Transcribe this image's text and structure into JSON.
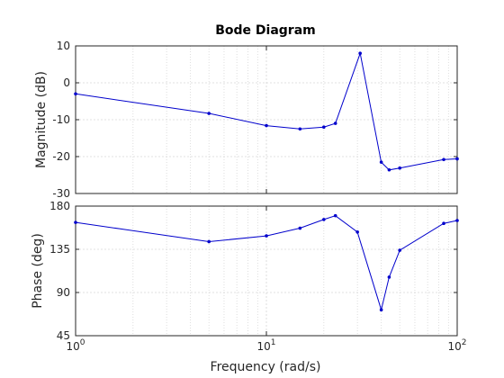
{
  "chart_data": {
    "type": "line",
    "title": "Bode Diagram",
    "xlabel": "Frequency  (rad/s)",
    "x_scale": "log",
    "xlim": [
      1,
      100
    ],
    "x_ticks": [
      {
        "value": 1,
        "base": "10",
        "exp": "0"
      },
      {
        "value": 10,
        "base": "10",
        "exp": "1"
      },
      {
        "value": 100,
        "base": "10",
        "exp": "2"
      }
    ],
    "grid": true,
    "line_color": "#0000cc",
    "panels": [
      {
        "id": "magnitude",
        "ylabel": "Magnitude (dB)",
        "ylim": [
          -30,
          10
        ],
        "y_ticks": [
          "10",
          "0",
          "-10",
          "-20",
          "-30"
        ],
        "y_tick_values": [
          10,
          0,
          -10,
          -20,
          -30
        ],
        "x": [
          1,
          5,
          10,
          15,
          20,
          23,
          31,
          40,
          44,
          50,
          85,
          100
        ],
        "y": [
          -3,
          -8.3,
          -11.6,
          -12.5,
          -12,
          -11,
          8,
          -21.5,
          -23.6,
          -23.1,
          -20.8,
          -20.6
        ]
      },
      {
        "id": "phase",
        "ylabel": "Phase (deg)",
        "ylim": [
          45,
          180
        ],
        "y_ticks": [
          "180",
          "135",
          "90",
          "45"
        ],
        "y_tick_values": [
          180,
          135,
          90,
          45
        ],
        "x": [
          1,
          5,
          10,
          15,
          20,
          23,
          30,
          40,
          44,
          50,
          85,
          100
        ],
        "y": [
          163,
          143,
          149,
          157,
          166,
          170,
          153,
          72,
          106,
          134,
          162,
          165
        ]
      }
    ]
  }
}
